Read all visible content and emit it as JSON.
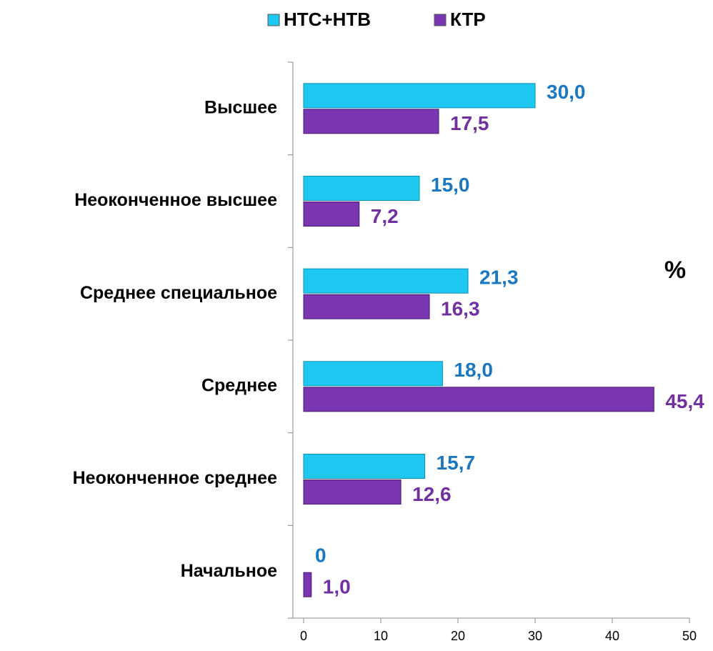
{
  "chart_data": {
    "type": "hbar",
    "categories": [
      "Высшее",
      "Неоконченное высшее",
      "Среднее специальное",
      "Среднее",
      "Неоконченное среднее",
      "Начальное"
    ],
    "series": [
      {
        "name": "НТС+НТВ",
        "color": "#1fc8f0",
        "label_color": "#1a78c2",
        "values": [
          30.0,
          15.0,
          21.3,
          18.0,
          15.7,
          0
        ],
        "value_labels": [
          "30,0",
          "15,0",
          "21,3",
          "18,0",
          "15,7",
          "0"
        ]
      },
      {
        "name": "КТР",
        "color": "#7a35b0",
        "label_color": "#7030a0",
        "values": [
          17.5,
          7.2,
          16.3,
          45.4,
          12.6,
          1.0
        ],
        "value_labels": [
          "17,5",
          "7,2",
          "16,3",
          "45,4",
          "12,6",
          "1,0"
        ]
      }
    ],
    "xlim": [
      0,
      50
    ],
    "xticks": [
      0,
      10,
      20,
      30,
      40,
      50
    ],
    "annotation": "%",
    "legend": "top"
  }
}
